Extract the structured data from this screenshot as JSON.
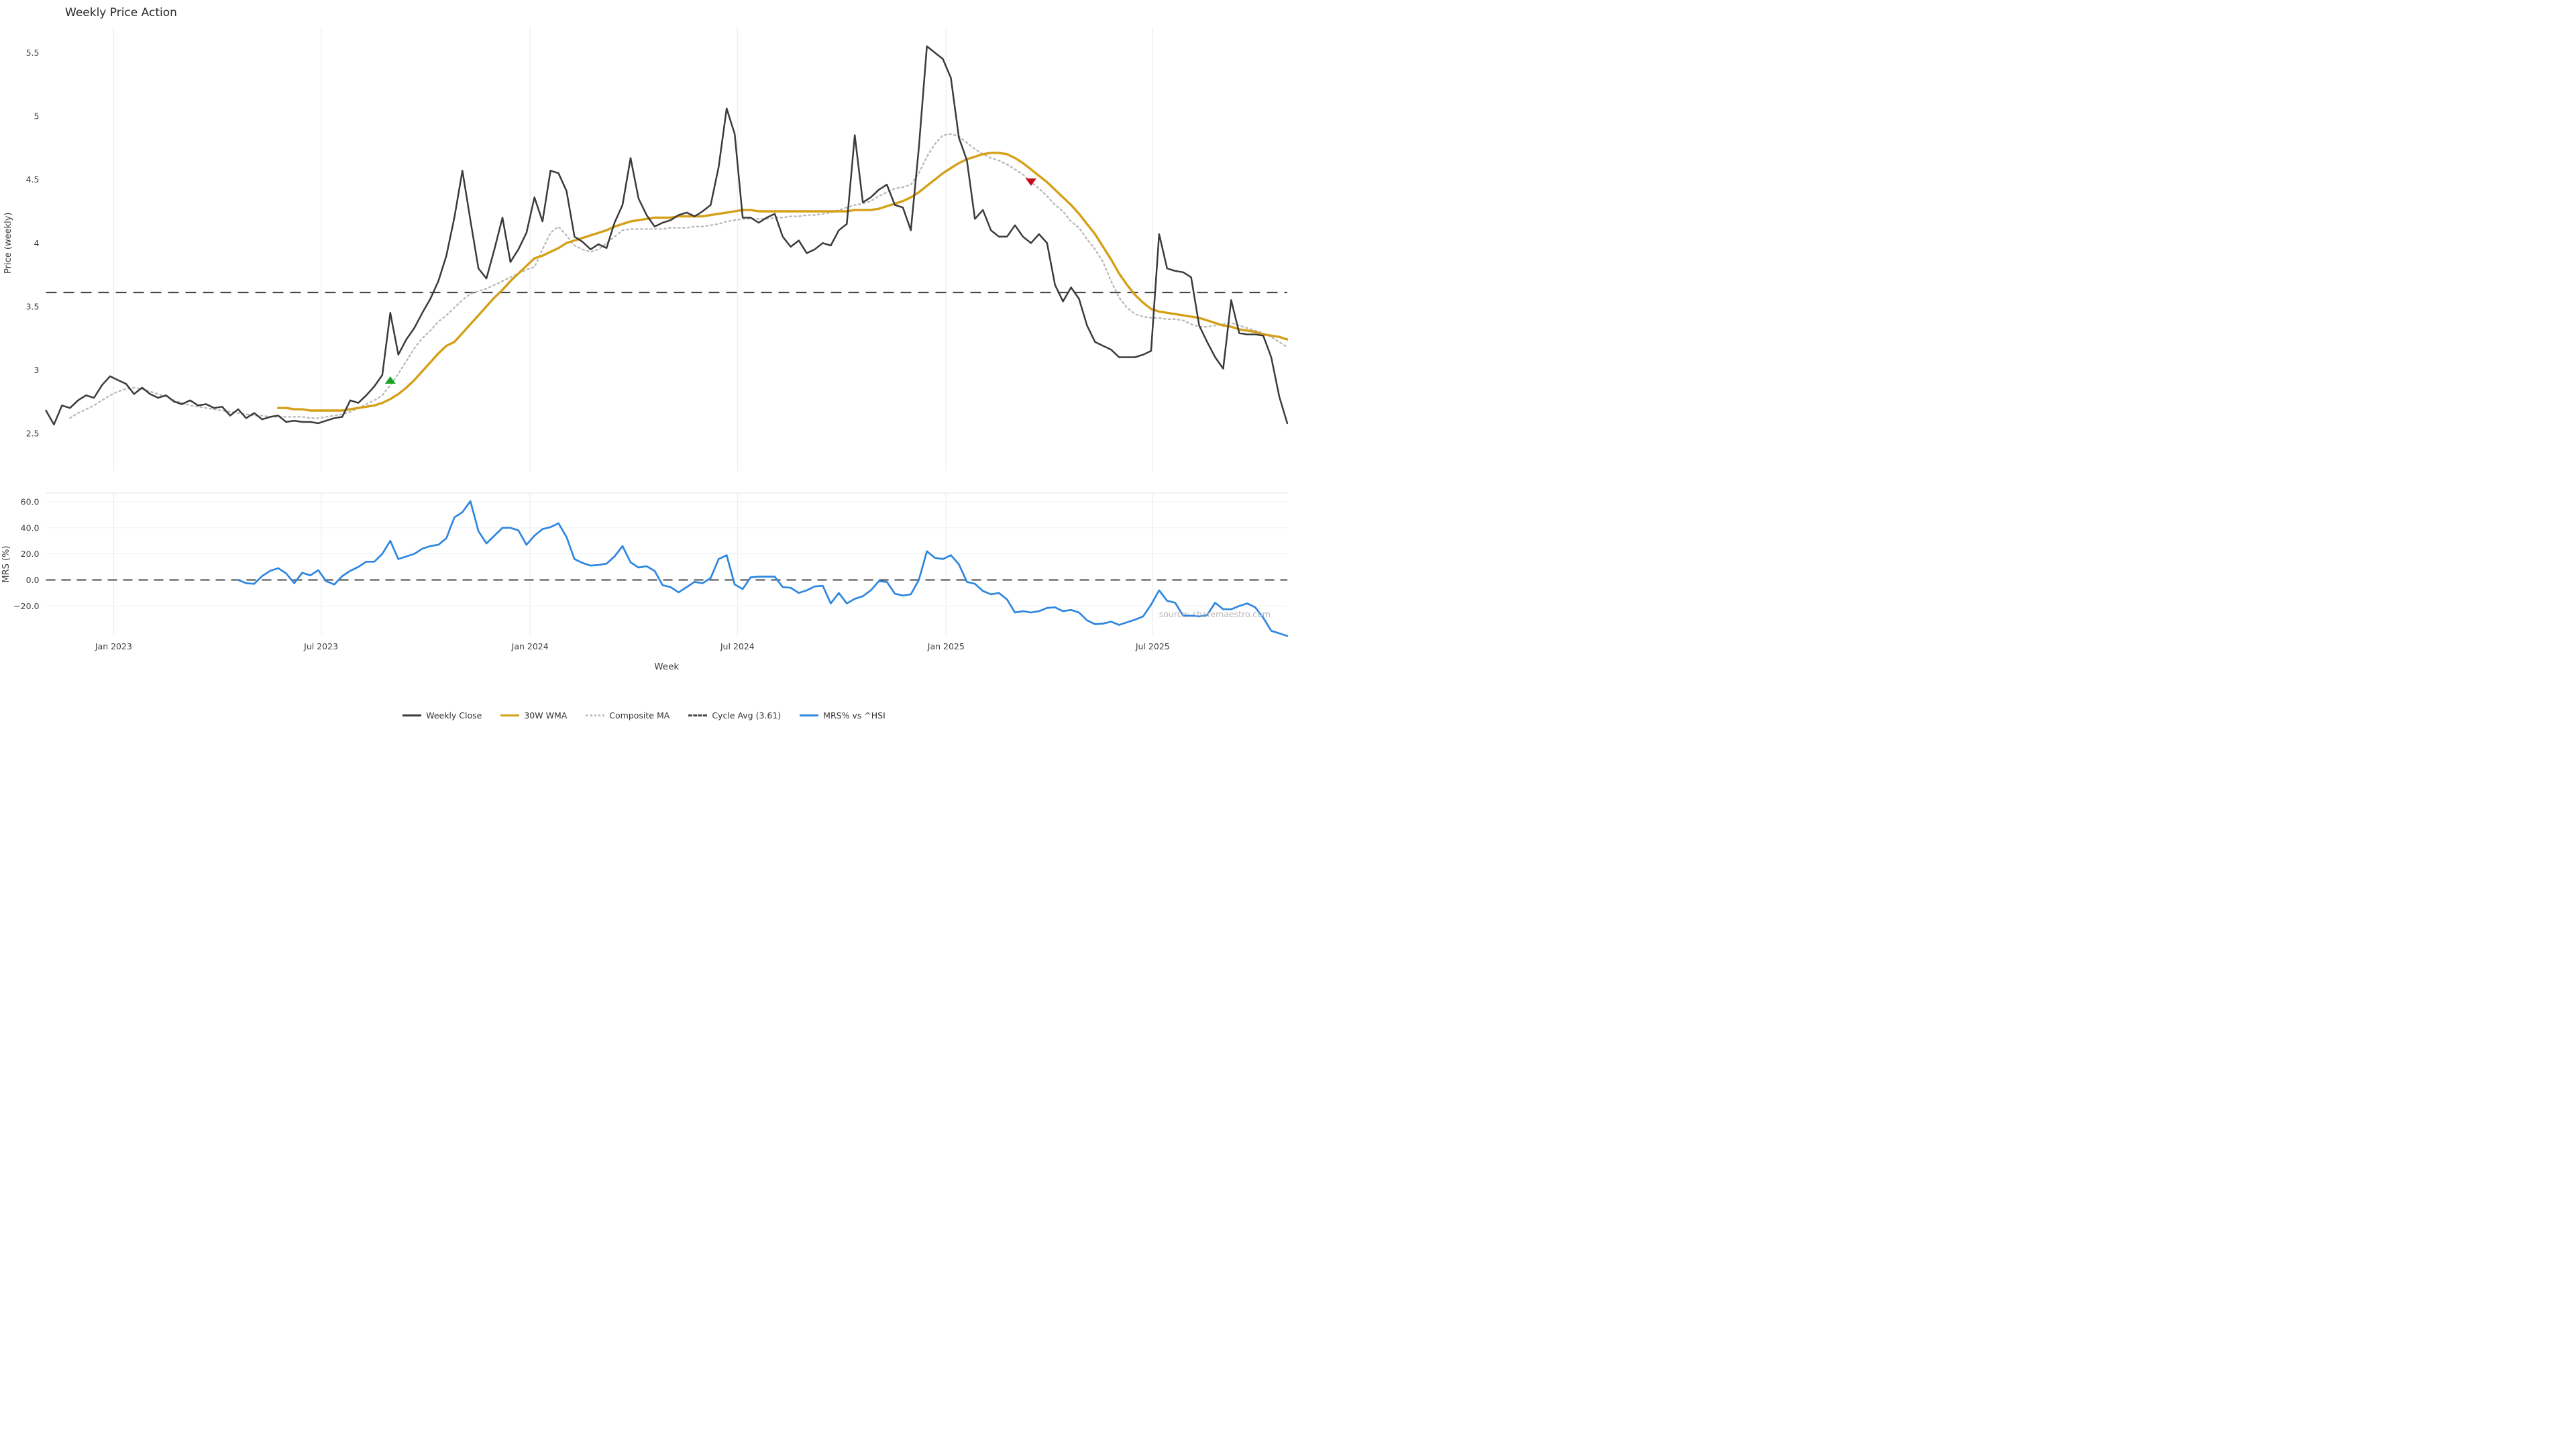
{
  "title": "Weekly Price Action",
  "watermark": "source: sharemaestro.com",
  "colors": {
    "weekly_close": "#3b3b3b",
    "wma_30w": "#d4a017",
    "composite_ma": "#b8b8b8",
    "cycle_avg": "#474747",
    "mrs": "#2e86e0",
    "buy_marker": "#18a327",
    "sell_marker": "#c40d1e",
    "grid": "#eaeaef",
    "panel_border": "#e3e3e8",
    "tick_text": "#3d3d3d"
  },
  "price_axis": {
    "label": "Price (weekly)",
    "ticks": [
      "2.5",
      "3",
      "3.5",
      "4",
      "4.5",
      "5",
      "5.5"
    ],
    "tick_values": [
      2.5,
      3,
      3.5,
      4,
      4.5,
      5,
      5.5
    ]
  },
  "mrs_axis": {
    "label": "MRS (%)",
    "ticks": [
      "−20.0",
      "0.0",
      "20.0",
      "40.0",
      "60.0"
    ],
    "tick_values": [
      -20,
      0,
      20,
      40,
      60
    ]
  },
  "x_axis": {
    "label": "Week",
    "ticks": [
      {
        "week": 8.45,
        "label": "Jan 2023"
      },
      {
        "week": 34.35,
        "label": "Jul 2023"
      },
      {
        "week": 60.45,
        "label": "Jan 2024"
      },
      {
        "week": 86.35,
        "label": "Jul 2024"
      },
      {
        "week": 112.4,
        "label": "Jan 2025"
      },
      {
        "week": 138.2,
        "label": "Jul 2025"
      }
    ]
  },
  "legend": [
    {
      "label": "Weekly Close",
      "type": "solid",
      "color": "#3b3b3b"
    },
    {
      "label": "30W WMA",
      "type": "solid",
      "color": "#d4a017"
    },
    {
      "label": "Composite MA",
      "type": "dotted",
      "color": "#b8b8b8"
    },
    {
      "label": "Cycle Avg (3.61)",
      "type": "dashed",
      "color": "#474747"
    },
    {
      "label": "MRS% vs ^HSI",
      "type": "solid",
      "color": "#2e86e0"
    }
  ],
  "chart_data": [
    {
      "type": "line",
      "panel": "price",
      "title": "Weekly Price Action",
      "xlabel": "Week",
      "ylabel": "Price (weekly)",
      "x_start": "2022-11-07 (week 0, weekly data)",
      "ylim": [
        2.2,
        5.75
      ],
      "grid": "vertical-only",
      "cycle_avg_value": 3.61,
      "series": [
        {
          "name": "Weekly Close",
          "start_week": 0,
          "values": [
            2.68,
            2.57,
            2.72,
            2.7,
            2.76,
            2.8,
            2.78,
            2.88,
            2.95,
            2.92,
            2.89,
            2.81,
            2.86,
            2.81,
            2.78,
            2.8,
            2.75,
            2.73,
            2.76,
            2.72,
            2.73,
            2.7,
            2.71,
            2.64,
            2.69,
            2.62,
            2.66,
            2.61,
            2.63,
            2.64,
            2.59,
            2.6,
            2.59,
            2.59,
            2.58,
            2.6,
            2.62,
            2.63,
            2.76,
            2.74,
            2.8,
            2.87,
            2.96,
            3.45,
            3.12,
            3.24,
            3.33,
            3.45,
            3.56,
            3.7,
            3.9,
            4.2,
            4.57,
            4.18,
            3.8,
            3.72,
            3.95,
            4.2,
            3.85,
            3.95,
            4.08,
            4.36,
            4.17,
            4.57,
            4.55,
            4.41,
            4.05,
            4.01,
            3.95,
            3.99,
            3.96,
            4.16,
            4.3,
            4.67,
            4.35,
            4.22,
            4.13,
            4.16,
            4.18,
            4.22,
            4.24,
            4.21,
            4.25,
            4.3,
            4.6,
            5.06,
            4.86,
            4.2,
            4.2,
            4.16,
            4.2,
            4.23,
            4.05,
            3.97,
            4.02,
            3.92,
            3.95,
            4.0,
            3.98,
            4.1,
            4.15,
            4.85,
            4.32,
            4.36,
            4.42,
            4.46,
            4.3,
            4.28,
            4.1,
            4.75,
            5.55,
            5.5,
            5.45,
            5.3,
            4.83,
            4.65,
            4.19,
            4.26,
            4.1,
            4.05,
            4.05,
            4.14,
            4.05,
            4.0,
            4.07,
            4.0,
            3.67,
            3.54,
            3.65,
            3.56,
            3.35,
            3.22,
            3.19,
            3.16,
            3.1,
            3.1,
            3.1,
            3.12,
            3.15,
            4.07,
            3.8,
            3.78,
            3.77,
            3.73,
            3.35,
            3.22,
            3.1,
            3.01,
            3.55,
            3.29,
            3.28,
            3.28,
            3.27,
            3.1,
            2.79,
            2.58
          ]
        },
        {
          "name": "30W WMA",
          "start_week": 29,
          "values": [
            2.7,
            2.7,
            2.69,
            2.69,
            2.68,
            2.68,
            2.68,
            2.68,
            2.68,
            2.69,
            2.7,
            2.71,
            2.72,
            2.74,
            2.77,
            2.81,
            2.86,
            2.92,
            2.99,
            3.06,
            3.13,
            3.19,
            3.22,
            3.29,
            3.36,
            3.43,
            3.5,
            3.57,
            3.63,
            3.7,
            3.76,
            3.82,
            3.88,
            3.9,
            3.93,
            3.96,
            4.0,
            4.02,
            4.04,
            4.06,
            4.08,
            4.1,
            4.13,
            4.15,
            4.17,
            4.18,
            4.19,
            4.2,
            4.2,
            4.2,
            4.21,
            4.21,
            4.21,
            4.21,
            4.22,
            4.23,
            4.24,
            4.25,
            4.26,
            4.26,
            4.25,
            4.25,
            4.25,
            4.25,
            4.25,
            4.25,
            4.25,
            4.25,
            4.25,
            4.25,
            4.25,
            4.25,
            4.26,
            4.26,
            4.26,
            4.27,
            4.29,
            4.31,
            4.33,
            4.36,
            4.4,
            4.45,
            4.5,
            4.55,
            4.59,
            4.63,
            4.66,
            4.68,
            4.7,
            4.71,
            4.71,
            4.7,
            4.67,
            4.63,
            4.58,
            4.53,
            4.48,
            4.42,
            4.36,
            4.3,
            4.23,
            4.15,
            4.07,
            3.97,
            3.87,
            3.76,
            3.67,
            3.59,
            3.53,
            3.48,
            3.46,
            3.45,
            3.44,
            3.43,
            3.42,
            3.41,
            3.39,
            3.37,
            3.35,
            3.34,
            3.32,
            3.31,
            3.3,
            3.28,
            3.27,
            3.26,
            3.24
          ]
        },
        {
          "name": "Composite MA",
          "start_week": 3,
          "values": [
            2.62,
            2.66,
            2.69,
            2.72,
            2.76,
            2.8,
            2.83,
            2.85,
            2.86,
            2.85,
            2.83,
            2.81,
            2.79,
            2.76,
            2.74,
            2.72,
            2.71,
            2.7,
            2.69,
            2.68,
            2.67,
            2.66,
            2.65,
            2.64,
            2.64,
            2.63,
            2.63,
            2.63,
            2.63,
            2.63,
            2.62,
            2.62,
            2.63,
            2.64,
            2.65,
            2.67,
            2.7,
            2.73,
            2.76,
            2.8,
            2.88,
            2.97,
            3.07,
            3.17,
            3.25,
            3.31,
            3.38,
            3.43,
            3.49,
            3.55,
            3.6,
            3.62,
            3.64,
            3.67,
            3.7,
            3.73,
            3.76,
            3.79,
            3.81,
            3.95,
            4.08,
            4.13,
            4.06,
            3.98,
            3.95,
            3.93,
            3.95,
            4.0,
            4.05,
            4.1,
            4.11,
            4.11,
            4.11,
            4.11,
            4.11,
            4.12,
            4.12,
            4.12,
            4.13,
            4.13,
            4.14,
            4.15,
            4.17,
            4.18,
            4.19,
            4.19,
            4.19,
            4.19,
            4.2,
            4.2,
            4.21,
            4.21,
            4.22,
            4.22,
            4.23,
            4.24,
            4.26,
            4.28,
            4.3,
            4.31,
            4.33,
            4.37,
            4.4,
            4.43,
            4.44,
            4.46,
            4.55,
            4.68,
            4.78,
            4.85,
            4.86,
            4.84,
            4.79,
            4.74,
            4.7,
            4.67,
            4.65,
            4.62,
            4.58,
            4.54,
            4.48,
            4.43,
            4.37,
            4.3,
            4.25,
            4.17,
            4.12,
            4.03,
            3.95,
            3.85,
            3.7,
            3.57,
            3.49,
            3.44,
            3.42,
            3.41,
            3.41,
            3.4,
            3.4,
            3.39,
            3.36,
            3.34,
            3.34,
            3.35,
            3.36,
            3.37,
            3.35,
            3.33,
            3.31,
            3.29,
            3.26,
            3.22,
            3.18
          ]
        }
      ],
      "signals": [
        {
          "type": "buy",
          "shape": "triangle-up",
          "week": 43,
          "price": 2.92,
          "color": "#18a327"
        },
        {
          "type": "sell",
          "shape": "triangle-down",
          "week": 123,
          "price": 4.48,
          "color": "#c40d1e"
        }
      ]
    },
    {
      "type": "line",
      "panel": "mrs",
      "xlabel": "Week",
      "ylabel": "MRS (%)",
      "ylim": [
        -45,
        67
      ],
      "grid": "horizontal-and-vertical",
      "zero_line": 0,
      "series": [
        {
          "name": "MRS% vs ^HSI",
          "start_week": 24,
          "values": [
            0,
            -2.5,
            -3,
            3,
            7,
            9,
            5,
            -2.5,
            5.5,
            3.5,
            7.5,
            -1,
            -3.5,
            3,
            7,
            10,
            14,
            14,
            20,
            30,
            16,
            18,
            20,
            24,
            26,
            27,
            32,
            48,
            52,
            60.5,
            37.5,
            28,
            34,
            40,
            40,
            38,
            27,
            34,
            39,
            40.5,
            43.5,
            33,
            16,
            13,
            11,
            11.5,
            12.5,
            18,
            26,
            13.5,
            9.5,
            10.5,
            7,
            -4,
            -5.5,
            -9.5,
            -5.5,
            -1.5,
            -2.5,
            1.5,
            16,
            19,
            -3.5,
            -7,
            2,
            2.5,
            2.5,
            2.5,
            -5.5,
            -6,
            -10,
            -8,
            -5,
            -4.5,
            -18,
            -10,
            -18,
            -14.5,
            -12.5,
            -8,
            -1,
            -1.5,
            -10.5,
            -12,
            -11,
            0,
            22,
            17,
            16,
            19,
            12,
            -1.5,
            -3,
            -8.5,
            -11,
            -10,
            -15,
            -25,
            -24,
            -25,
            -24,
            -21.5,
            -21,
            -24,
            -23,
            -25,
            -31,
            -34,
            -33.5,
            -32,
            -34.5,
            -32.5,
            -30.5,
            -28,
            -19,
            -8,
            -16,
            -17.5,
            -27.5,
            -27.5,
            -28,
            -27,
            -17.5,
            -22.5,
            -22.5,
            -20,
            -18,
            -21,
            -29,
            -39,
            -41,
            -43
          ]
        }
      ]
    }
  ]
}
